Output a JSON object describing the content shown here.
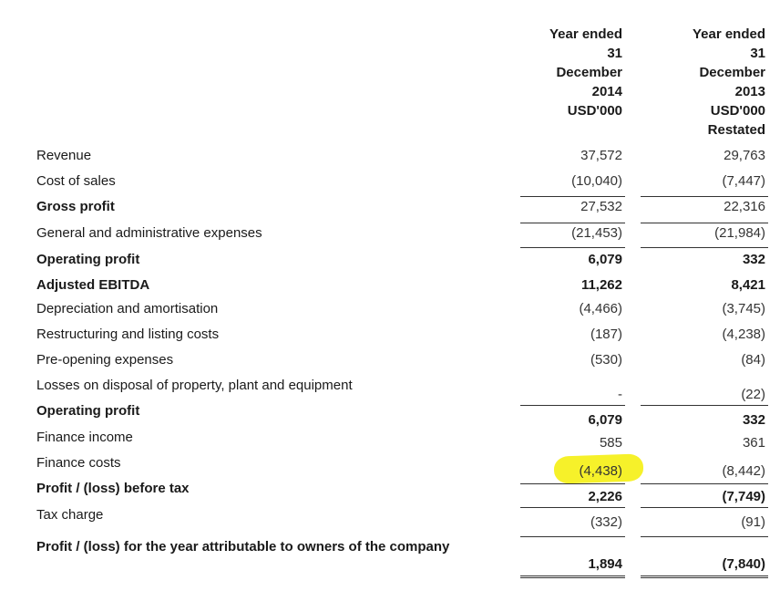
{
  "headers": {
    "col_2014": [
      "Year ended",
      "31",
      "December",
      "2014",
      "USD'000"
    ],
    "col_2013": [
      "Year ended",
      "31",
      "December",
      "2013",
      "USD'000",
      "Restated"
    ]
  },
  "rows": [
    {
      "label": "Revenue",
      "bold": false,
      "v2014": "37,572",
      "v2013": "29,763"
    },
    {
      "label": "Cost of sales",
      "bold": false,
      "v2014": "(10,040)",
      "v2013": "(7,447)"
    },
    {
      "label": "Gross profit",
      "bold": true,
      "v2014": "27,532",
      "v2013": "22,316"
    },
    {
      "label": "General and administrative expenses",
      "bold": false,
      "v2014": "(21,453)",
      "v2013": "(21,984)"
    },
    {
      "label": "Operating profit",
      "bold": true,
      "v2014": "6,079",
      "v2013": "332"
    },
    {
      "label": "Adjusted EBITDA",
      "bold": true,
      "v2014": "11,262",
      "v2013": "8,421"
    },
    {
      "label": "Depreciation and amortisation",
      "bold": false,
      "v2014": "(4,466)",
      "v2013": "(3,745)"
    },
    {
      "label": "Restructuring and listing costs",
      "bold": false,
      "v2014": "(187)",
      "v2013": "(4,238)"
    },
    {
      "label": "Pre-opening expenses",
      "bold": false,
      "v2014": "(530)",
      "v2013": "(84)"
    },
    {
      "label": "Losses on disposal of property, plant and equipment",
      "bold": false,
      "v2014": "-",
      "v2013": "(22)"
    },
    {
      "label": "Operating profit",
      "bold": true,
      "v2014": "6,079",
      "v2013": "332"
    },
    {
      "label": "Finance income",
      "bold": false,
      "v2014": "585",
      "v2013": "361"
    },
    {
      "label": "Finance costs",
      "bold": false,
      "v2014": "(4,438)",
      "v2013": "(8,442)"
    },
    {
      "label": "Profit / (loss) before tax",
      "bold": true,
      "v2014": "2,226",
      "v2013": "(7,749)"
    },
    {
      "label": "Tax charge",
      "bold": false,
      "v2014": "(332)",
      "v2013": "(91)"
    }
  ],
  "final_row": {
    "label": "Profit / (loss) for the year attributable to owners of the company",
    "v2014": "1,894",
    "v2013": "(7,840)"
  },
  "colors": {
    "highlight": "#f6f12a"
  }
}
